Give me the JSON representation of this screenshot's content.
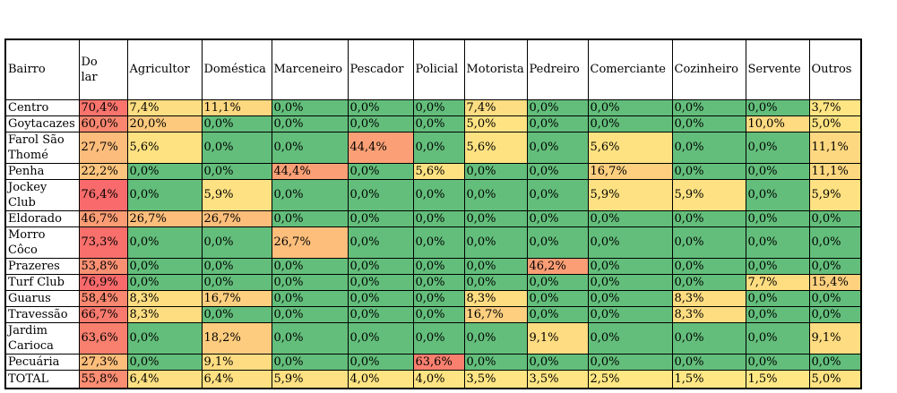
{
  "chart_data": {
    "type": "heatmap",
    "title": "",
    "row_header": "Bairro",
    "columns": [
      "Do lar",
      "Agricultor",
      "Doméstica",
      "Marceneiro",
      "Pescador",
      "Policial",
      "Motorista",
      "Pedreiro",
      "Comerciante",
      "Cozinheiro",
      "Servente",
      "Outros"
    ],
    "rows": [
      "Centro",
      "Goytacazes",
      "Farol São Thomé",
      "Penha",
      "Jockey Club",
      "Eldorado",
      "Morro Côco",
      "Prazeres",
      "Turf Club",
      "Guarus",
      "Travessão",
      "Jardim Carioca",
      "Pecuária",
      "TOTAL"
    ],
    "values": [
      [
        70.4,
        7.4,
        11.1,
        0.0,
        0.0,
        0.0,
        7.4,
        0.0,
        0.0,
        0.0,
        0.0,
        3.7
      ],
      [
        60.0,
        20.0,
        0.0,
        0.0,
        0.0,
        0.0,
        5.0,
        0.0,
        0.0,
        0.0,
        10.0,
        5.0
      ],
      [
        27.7,
        5.6,
        0.0,
        0.0,
        44.4,
        0.0,
        5.6,
        0.0,
        5.6,
        0.0,
        0.0,
        11.1
      ],
      [
        22.2,
        0.0,
        0.0,
        44.4,
        0.0,
        5.6,
        0.0,
        0.0,
        16.7,
        0.0,
        0.0,
        11.1
      ],
      [
        76.4,
        0.0,
        5.9,
        0.0,
        0.0,
        0.0,
        0.0,
        0.0,
        5.9,
        5.9,
        0.0,
        5.9
      ],
      [
        46.7,
        26.7,
        26.7,
        0.0,
        0.0,
        0.0,
        0.0,
        0.0,
        0.0,
        0.0,
        0.0,
        0.0
      ],
      [
        73.3,
        0.0,
        0.0,
        26.7,
        0.0,
        0.0,
        0.0,
        0.0,
        0.0,
        0.0,
        0.0,
        0.0
      ],
      [
        53.8,
        0.0,
        0.0,
        0.0,
        0.0,
        0.0,
        0.0,
        46.2,
        0.0,
        0.0,
        0.0,
        0.0
      ],
      [
        76.9,
        0.0,
        0.0,
        0.0,
        0.0,
        0.0,
        0.0,
        0.0,
        0.0,
        0.0,
        7.7,
        15.4
      ],
      [
        58.4,
        8.3,
        16.7,
        0.0,
        0.0,
        0.0,
        8.3,
        0.0,
        0.0,
        8.3,
        0.0,
        0.0
      ],
      [
        66.7,
        8.3,
        0.0,
        0.0,
        0.0,
        0.0,
        16.7,
        0.0,
        0.0,
        8.3,
        0.0,
        0.0
      ],
      [
        63.6,
        0.0,
        18.2,
        0.0,
        0.0,
        0.0,
        0.0,
        9.1,
        0.0,
        0.0,
        0.0,
        9.1
      ],
      [
        27.3,
        0.0,
        9.1,
        0.0,
        0.0,
        63.6,
        0.0,
        0.0,
        0.0,
        0.0,
        0.0,
        0.0
      ],
      [
        55.8,
        6.4,
        6.4,
        5.9,
        4.0,
        4.0,
        3.5,
        3.5,
        2.5,
        1.5,
        1.5,
        5.0
      ]
    ],
    "value_suffix": "%",
    "decimal_separator": ",",
    "color_scale": {
      "zero_color": "#63BE7B",
      "low_color": "#FFEB84",
      "high_color": "#F8696B",
      "min_value": 0,
      "max_value": 76.9
    },
    "grid": true,
    "legend": "none"
  }
}
